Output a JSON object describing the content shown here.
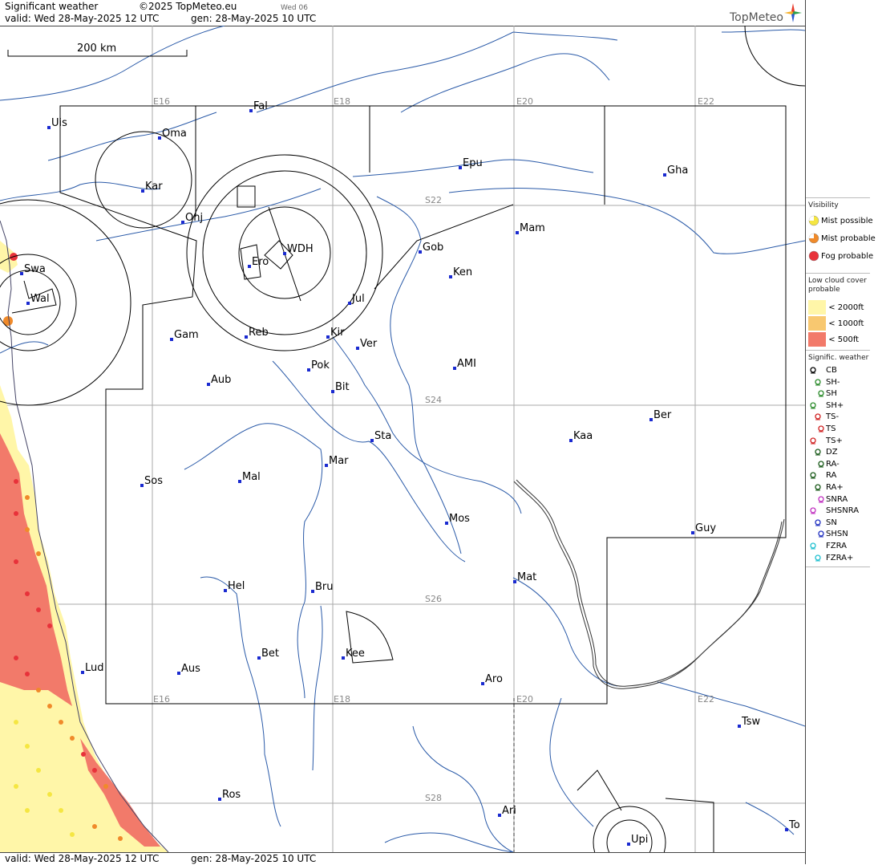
{
  "header": {
    "title": "Significant weather",
    "copyright": "©2025 TopMeteo.eu",
    "run": "Wed 06",
    "valid": "valid:  Wed  28-May-2025  12 UTC",
    "gen": "gen: 28-May-2025 10 UTC",
    "brand": "TopMeteo"
  },
  "footer": {
    "valid": "valid:  Wed  28-May-2025  12 UTC",
    "gen": "gen: 28-May-2025 10 UTC"
  },
  "scale_bar": {
    "label": "200 km"
  },
  "grid_labels": {
    "lon": [
      "E16",
      "E18",
      "E20",
      "E22"
    ],
    "lat": [
      "S22",
      "S24",
      "S26",
      "S28"
    ]
  },
  "places": [
    "Uis",
    "Fal",
    "Oma",
    "Kar",
    "Onj",
    "Epu",
    "Gha",
    "Swa",
    "Wal",
    "Ero",
    "WDH",
    "Gob",
    "Mam",
    "Ken",
    "Jul",
    "Gam",
    "Reb",
    "Kir",
    "Ver",
    "Pok",
    "AMI",
    "Bit",
    "Aub",
    "Ber",
    "Kaa",
    "Sta",
    "Mar",
    "Sos",
    "Mal",
    "Mos",
    "Guy",
    "Mat",
    "Hel",
    "Bru",
    "Bet",
    "Kee",
    "Lud",
    "Aus",
    "Aro",
    "Tsw",
    "Ros",
    "Ari",
    "To",
    "Upi"
  ],
  "legend": {
    "visibility_title": "Visibility",
    "visibility": [
      {
        "label": "Mist possible",
        "color": "#f5e642"
      },
      {
        "label": "Mist probable",
        "color": "#f08a2a"
      },
      {
        "label": "Fog probable",
        "color": "#e8323a"
      }
    ],
    "cloud_title": "Low cloud cover probable",
    "cloud": [
      {
        "label": "< 2000ft",
        "color": "#fff6a8"
      },
      {
        "label": "< 1000ft",
        "color": "#f8c870"
      },
      {
        "label": "<   500ft",
        "color": "#f27a6a"
      }
    ],
    "weather_title": "Signific. weather",
    "weather": [
      {
        "label": "CB",
        "color": "#000000",
        "icon": "cb-icon"
      },
      {
        "label": "SH-",
        "color": "#2a8a2a",
        "icon": "shower-light-icon"
      },
      {
        "label": "SH",
        "color": "#2a8a2a",
        "icon": "shower-icon"
      },
      {
        "label": "SH+",
        "color": "#2a8a2a",
        "icon": "shower-heavy-icon"
      },
      {
        "label": "TS-",
        "color": "#d02020",
        "icon": "thunderstorm-light-icon"
      },
      {
        "label": "TS",
        "color": "#d02020",
        "icon": "thunderstorm-icon"
      },
      {
        "label": "TS+",
        "color": "#d02020",
        "icon": "thunderstorm-heavy-icon"
      },
      {
        "label": "DZ",
        "color": "#1a5a1a",
        "icon": "drizzle-icon"
      },
      {
        "label": "RA-",
        "color": "#1a5a1a",
        "icon": "rain-light-icon"
      },
      {
        "label": "RA",
        "color": "#1a5a1a",
        "icon": "rain-icon"
      },
      {
        "label": "RA+",
        "color": "#1a5a1a",
        "icon": "rain-heavy-icon"
      },
      {
        "label": "SNRA",
        "color": "#c030c0",
        "icon": "sleet-icon"
      },
      {
        "label": "SHSNRA",
        "color": "#c030c0",
        "icon": "sleet-shower-icon"
      },
      {
        "label": "SN",
        "color": "#2030c0",
        "icon": "snow-icon"
      },
      {
        "label": "SHSN",
        "color": "#2030c0",
        "icon": "snow-shower-icon"
      },
      {
        "label": "FZRA",
        "color": "#20c0d0",
        "icon": "freezing-rain-icon"
      },
      {
        "label": "FZRA+",
        "color": "#20c0d0",
        "icon": "freezing-rain-heavy-icon"
      }
    ]
  }
}
